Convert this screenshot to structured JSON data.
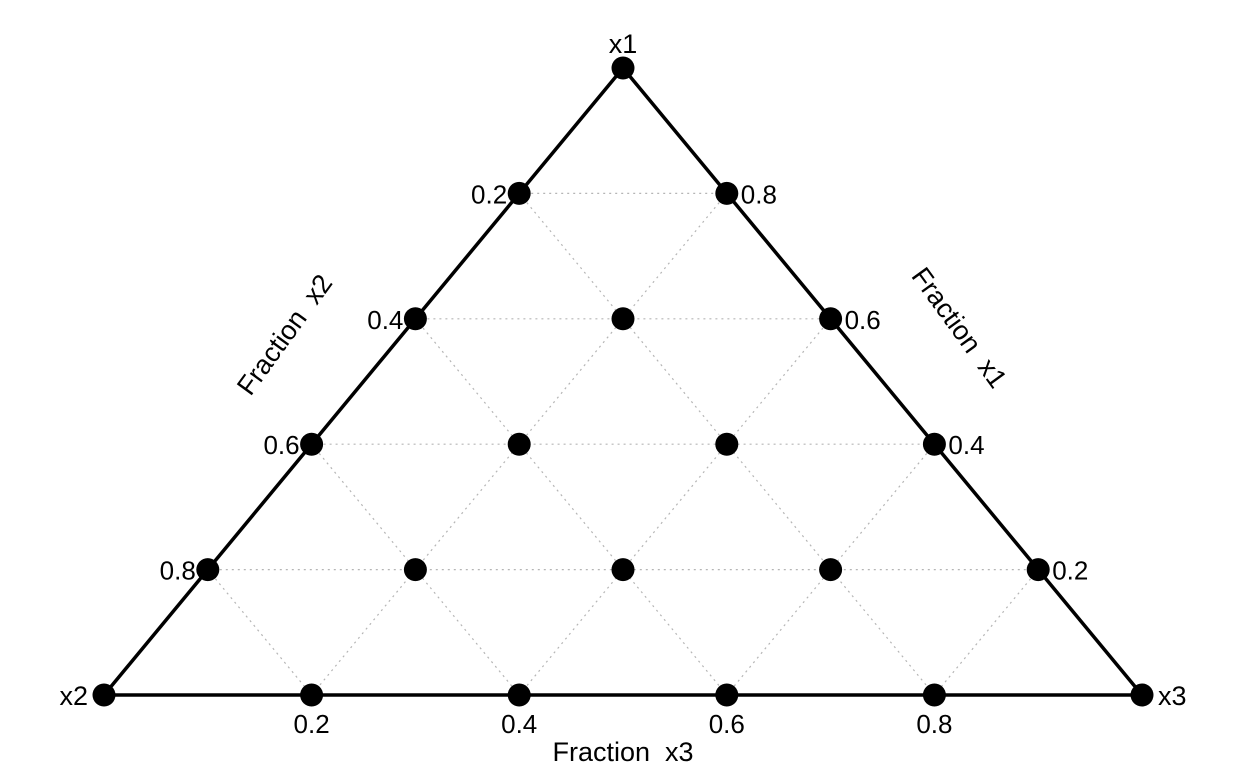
{
  "chart_data": {
    "type": "scatter",
    "subtype": "ternary",
    "title": "",
    "vertices": {
      "top": "x1",
      "left": "x2",
      "right": "x3"
    },
    "axis_titles": {
      "left_edge": "Fraction  x2",
      "right_edge": "Fraction  x1",
      "bottom_edge": "Fraction  x3"
    },
    "ticks": {
      "left_edge": [
        "0.2",
        "0.4",
        "0.6",
        "0.8"
      ],
      "right_edge": [
        "0.8",
        "0.6",
        "0.4",
        "0.2"
      ],
      "bottom_edge": [
        "0.2",
        "0.4",
        "0.6",
        "0.8"
      ]
    },
    "grid": true,
    "points": [
      {
        "x1": 1.0,
        "x2": 0.0,
        "x3": 0.0
      },
      {
        "x1": 0.8,
        "x2": 0.2,
        "x3": 0.0
      },
      {
        "x1": 0.8,
        "x2": 0.0,
        "x3": 0.2
      },
      {
        "x1": 0.6,
        "x2": 0.4,
        "x3": 0.0
      },
      {
        "x1": 0.6,
        "x2": 0.2,
        "x3": 0.2
      },
      {
        "x1": 0.6,
        "x2": 0.0,
        "x3": 0.4
      },
      {
        "x1": 0.4,
        "x2": 0.6,
        "x3": 0.0
      },
      {
        "x1": 0.4,
        "x2": 0.4,
        "x3": 0.2
      },
      {
        "x1": 0.4,
        "x2": 0.2,
        "x3": 0.4
      },
      {
        "x1": 0.4,
        "x2": 0.0,
        "x3": 0.6
      },
      {
        "x1": 0.2,
        "x2": 0.8,
        "x3": 0.0
      },
      {
        "x1": 0.2,
        "x2": 0.6,
        "x3": 0.2
      },
      {
        "x1": 0.2,
        "x2": 0.4,
        "x3": 0.4
      },
      {
        "x1": 0.2,
        "x2": 0.2,
        "x3": 0.6
      },
      {
        "x1": 0.2,
        "x2": 0.0,
        "x3": 0.8
      },
      {
        "x1": 0.0,
        "x2": 1.0,
        "x3": 0.0
      },
      {
        "x1": 0.0,
        "x2": 0.8,
        "x3": 0.2
      },
      {
        "x1": 0.0,
        "x2": 0.6,
        "x3": 0.4
      },
      {
        "x1": 0.0,
        "x2": 0.4,
        "x3": 0.6
      },
      {
        "x1": 0.0,
        "x2": 0.2,
        "x3": 0.8
      },
      {
        "x1": 0.0,
        "x2": 0.0,
        "x3": 1.0
      }
    ],
    "colors": {
      "points": "#000000",
      "edges": "#000000",
      "grid": "#b5b5b5"
    }
  }
}
